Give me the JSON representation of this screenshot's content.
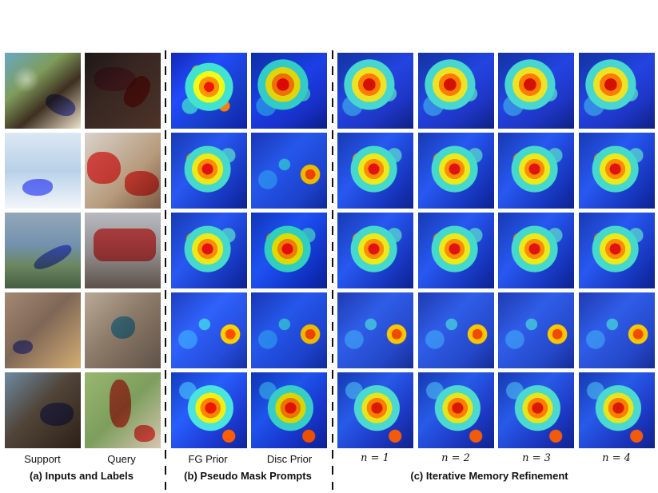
{
  "labels": {
    "support": "Support",
    "query": "Query",
    "fg_prior": "FG Prior",
    "disc_prior": "Disc Prior",
    "n1": "n = 1",
    "n2": "n = 2",
    "n3": "n = 3",
    "n4": "n = 4"
  },
  "captions": {
    "inputs": "(a) Inputs and Labels",
    "prompts": "(b) Pseudo Mask Prompts",
    "refinement": "(c) Iterative Memory Refinement"
  }
}
